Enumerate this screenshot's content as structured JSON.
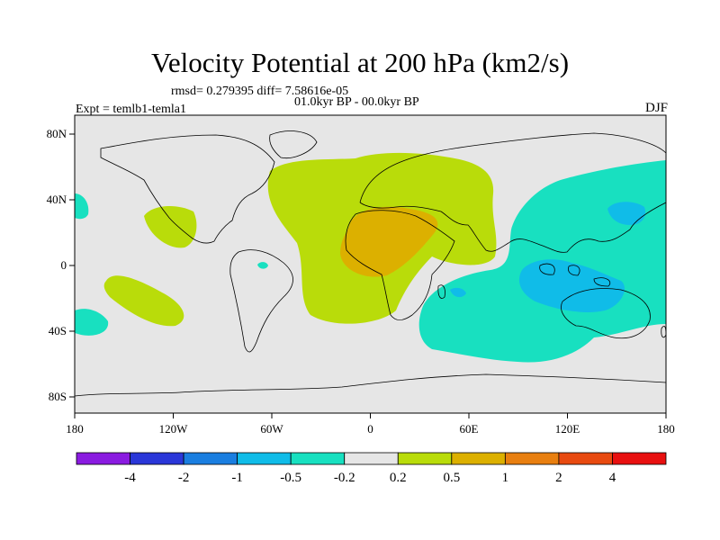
{
  "title": "Velocity Potential at 200 hPa (km2/s)",
  "stats": "rmsd= 0.279395  diff= 7.58616e-05",
  "period": "01.0kyr BP - 00.0kyr BP",
  "experiment": "Expt = temlb1-temla1",
  "season": "DJF",
  "axes": {
    "lon_labels": [
      "180",
      "120W",
      "60W",
      "0",
      "60E",
      "120E",
      "180"
    ],
    "lat_labels": [
      "80N",
      "40N",
      "0",
      "40S",
      "80S"
    ]
  },
  "colorbar": {
    "colors": [
      "#8a1be0",
      "#2a37d8",
      "#1a7ee0",
      "#10bce8",
      "#18e0c0",
      "#e6e6e6",
      "#b9dc0a",
      "#dcb000",
      "#e87f10",
      "#e84a10",
      "#e81010"
    ],
    "labels": [
      "-4",
      "-2",
      "-1",
      "-0.5",
      "-0.2",
      "0.2",
      "0.5",
      "1",
      "2",
      "4"
    ]
  }
}
